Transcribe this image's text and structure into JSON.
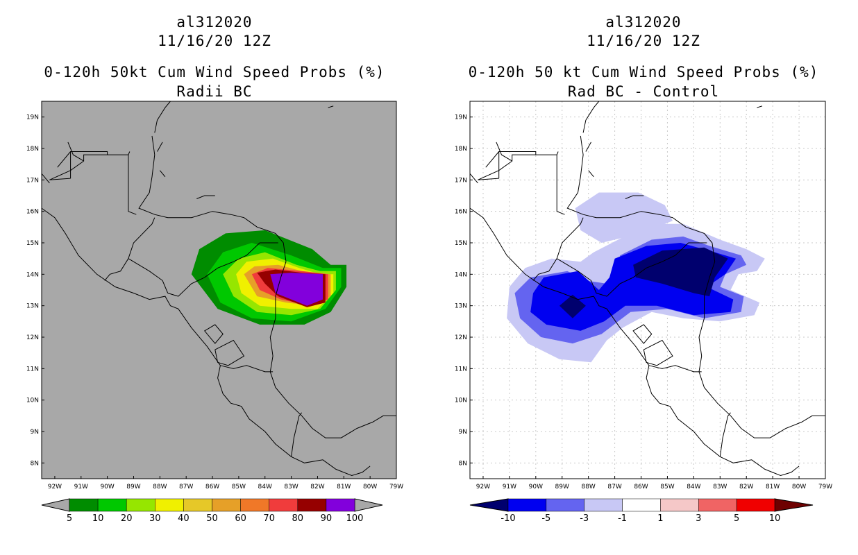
{
  "chart_data": [
    {
      "type": "heatmap",
      "storm_id": "al312020",
      "datetime": "11/16/20 12Z",
      "title": "0-120h 50kt Cum Wind Speed Probs (%)",
      "subtitle": "Radii BC",
      "background_color": "#a8a8a8",
      "lon_range": [
        -92.5,
        -79
      ],
      "lat_range": [
        7.5,
        19.5
      ],
      "x_ticks": [
        "92W",
        "91W",
        "90W",
        "89W",
        "88W",
        "87W",
        "86W",
        "85W",
        "84W",
        "83W",
        "82W",
        "81W",
        "80W",
        "79W"
      ],
      "y_ticks": [
        "8N",
        "9N",
        "10N",
        "11N",
        "12N",
        "13N",
        "14N",
        "15N",
        "16N",
        "17N",
        "18N",
        "19N"
      ],
      "colorbar": {
        "labels": [
          "5",
          "10",
          "20",
          "30",
          "40",
          "50",
          "60",
          "70",
          "80",
          "90",
          "100"
        ],
        "colors": [
          "#008c00",
          "#00c800",
          "#96e600",
          "#f0f000",
          "#e6c828",
          "#e6a028",
          "#f07828",
          "#f03c3c",
          "#960000",
          "#8200dc"
        ],
        "under_color": "#a8a8a8",
        "over_color": "#a8a8a8"
      },
      "field": {
        "center_lon": -83.3,
        "center_lat": 13.9,
        "levels": [
          {
            "value": 5,
            "color": "#008c00",
            "shape": [
              [
                -86.8,
                14.0
              ],
              [
                -86.5,
                14.8
              ],
              [
                -85.5,
                15.3
              ],
              [
                -84.0,
                15.4
              ],
              [
                -82.2,
                14.8
              ],
              [
                -81.5,
                14.3
              ],
              [
                -80.9,
                14.3
              ],
              [
                -80.9,
                13.6
              ],
              [
                -81.5,
                12.8
              ],
              [
                -82.5,
                12.4
              ],
              [
                -84.2,
                12.4
              ],
              [
                -85.8,
                12.9
              ]
            ]
          },
          {
            "value": 10,
            "color": "#00c800",
            "shape": [
              [
                -86.2,
                14.0
              ],
              [
                -85.6,
                14.7
              ],
              [
                -84.5,
                15.0
              ],
              [
                -83.0,
                14.6
              ],
              [
                -81.8,
                14.2
              ],
              [
                -81.1,
                14.2
              ],
              [
                -81.1,
                13.6
              ],
              [
                -81.7,
                12.9
              ],
              [
                -83.0,
                12.5
              ],
              [
                -84.5,
                12.6
              ],
              [
                -85.7,
                13.1
              ]
            ]
          },
          {
            "value": 20,
            "color": "#96e600",
            "shape": [
              [
                -85.6,
                14.0
              ],
              [
                -85.0,
                14.5
              ],
              [
                -84.0,
                14.7
              ],
              [
                -82.8,
                14.3
              ],
              [
                -81.9,
                14.1
              ],
              [
                -81.3,
                14.1
              ],
              [
                -81.3,
                13.5
              ],
              [
                -81.9,
                12.9
              ],
              [
                -83.0,
                12.7
              ],
              [
                -84.3,
                12.8
              ],
              [
                -85.2,
                13.3
              ]
            ]
          },
          {
            "value": 30,
            "color": "#f0f000",
            "shape": [
              [
                -85.1,
                14.0
              ],
              [
                -84.7,
                14.4
              ],
              [
                -83.7,
                14.5
              ],
              [
                -82.7,
                14.2
              ],
              [
                -81.9,
                14.0
              ],
              [
                -81.4,
                14.0
              ],
              [
                -81.4,
                13.4
              ],
              [
                -82.0,
                12.9
              ],
              [
                -83.0,
                12.9
              ],
              [
                -84.2,
                13.0
              ],
              [
                -84.9,
                13.4
              ]
            ]
          },
          {
            "value": 50,
            "color": "#e6a028",
            "shape": [
              [
                -84.8,
                14.0
              ],
              [
                -84.4,
                14.25
              ],
              [
                -83.5,
                14.3
              ],
              [
                -82.6,
                14.1
              ],
              [
                -81.5,
                14.0
              ],
              [
                -81.5,
                13.3
              ],
              [
                -82.2,
                13.0
              ],
              [
                -83.2,
                13.1
              ],
              [
                -84.3,
                13.3
              ]
            ]
          },
          {
            "value": 70,
            "color": "#f03c3c",
            "shape": [
              [
                -84.5,
                14.0
              ],
              [
                -83.9,
                14.2
              ],
              [
                -82.6,
                14.1
              ],
              [
                -81.6,
                14.0
              ],
              [
                -81.6,
                13.2
              ],
              [
                -82.3,
                13.0
              ],
              [
                -83.4,
                13.2
              ],
              [
                -84.2,
                13.5
              ]
            ]
          },
          {
            "value": 80,
            "color": "#960000",
            "shape": [
              [
                -84.3,
                14.05
              ],
              [
                -83.6,
                14.15
              ],
              [
                -82.6,
                14.05
              ],
              [
                -81.7,
                14.0
              ],
              [
                -81.7,
                13.1
              ],
              [
                -82.4,
                12.95
              ],
              [
                -83.5,
                13.3
              ],
              [
                -84.0,
                13.7
              ]
            ]
          },
          {
            "value": 90,
            "color": "#8200dc",
            "shape": [
              [
                -83.8,
                14.0
              ],
              [
                -83.0,
                14.05
              ],
              [
                -81.8,
                14.0
              ],
              [
                -81.8,
                13.2
              ],
              [
                -82.4,
                13.0
              ],
              [
                -83.6,
                13.4
              ]
            ]
          }
        ]
      }
    },
    {
      "type": "heatmap",
      "storm_id": "al312020",
      "datetime": "11/16/20 12Z",
      "title": "0-120h 50 kt Cum Wind Speed Probs (%)",
      "subtitle": "Rad BC - Control",
      "background_color": "#ffffff",
      "grid": true,
      "lon_range": [
        -92.5,
        -79
      ],
      "lat_range": [
        7.5,
        19.5
      ],
      "x_ticks": [
        "92W",
        "91W",
        "90W",
        "89W",
        "88W",
        "87W",
        "86W",
        "85W",
        "84W",
        "83W",
        "82W",
        "81W",
        "80W",
        "79W"
      ],
      "y_ticks": [
        "8N",
        "9N",
        "10N",
        "11N",
        "12N",
        "13N",
        "14N",
        "15N",
        "16N",
        "17N",
        "18N",
        "19N"
      ],
      "colorbar": {
        "labels": [
          "-10",
          "-5",
          "-3",
          "-1",
          "1",
          "3",
          "5",
          "10"
        ],
        "colors": [
          "#0000f0",
          "#6464f0",
          "#c8c8f5",
          "#ffffff",
          "#f5c8c8",
          "#f06464",
          "#f00000"
        ],
        "under_color": "#00006e",
        "over_color": "#6e0000"
      },
      "field": {
        "levels": [
          {
            "value": -1,
            "color": "#c8c8f5",
            "shape": [
              [
                -91.0,
                13.6
              ],
              [
                -90.4,
                14.2
              ],
              [
                -89.4,
                14.5
              ],
              [
                -88.3,
                14.4
              ],
              [
                -87.8,
                14.7
              ],
              [
                -86.4,
                15.3
              ],
              [
                -85.6,
                15.6
              ],
              [
                -84.4,
                15.6
              ],
              [
                -83.0,
                15.1
              ],
              [
                -82.0,
                14.8
              ],
              [
                -81.3,
                14.5
              ],
              [
                -81.6,
                14.1
              ],
              [
                -82.3,
                14.0
              ],
              [
                -82.6,
                13.5
              ],
              [
                -81.5,
                13.1
              ],
              [
                -81.7,
                12.7
              ],
              [
                -83.0,
                12.5
              ],
              [
                -84.4,
                12.6
              ],
              [
                -85.6,
                12.8
              ],
              [
                -86.7,
                12.3
              ],
              [
                -87.3,
                11.9
              ],
              [
                -87.9,
                11.2
              ],
              [
                -89.1,
                11.3
              ],
              [
                -90.3,
                11.8
              ],
              [
                -91.1,
                12.6
              ]
            ]
          },
          {
            "value": -1,
            "color": "#c8c8f5",
            "shape": [
              [
                -88.5,
                16.1
              ],
              [
                -87.6,
                16.6
              ],
              [
                -86.1,
                16.6
              ],
              [
                -85.1,
                16.2
              ],
              [
                -84.8,
                15.7
              ],
              [
                -86.0,
                15.3
              ],
              [
                -87.5,
                15.0
              ],
              [
                -88.3,
                15.4
              ]
            ]
          },
          {
            "value": -3,
            "color": "#6464f0",
            "shape": [
              [
                -90.8,
                13.4
              ],
              [
                -90.2,
                13.9
              ],
              [
                -88.8,
                14.1
              ],
              [
                -88.1,
                13.8
              ],
              [
                -87.3,
                13.7
              ],
              [
                -86.9,
                13.9
              ],
              [
                -86.8,
                14.6
              ],
              [
                -85.6,
                15.1
              ],
              [
                -84.4,
                15.2
              ],
              [
                -83.4,
                14.9
              ],
              [
                -82.2,
                14.6
              ],
              [
                -82.0,
                14.3
              ],
              [
                -82.8,
                14.0
              ],
              [
                -83.0,
                13.6
              ],
              [
                -82.1,
                13.3
              ],
              [
                -82.2,
                12.8
              ],
              [
                -83.6,
                12.6
              ],
              [
                -85.0,
                12.9
              ],
              [
                -86.4,
                12.8
              ],
              [
                -87.5,
                12.1
              ],
              [
                -88.6,
                11.8
              ],
              [
                -89.8,
                12.0
              ],
              [
                -90.6,
                12.6
              ]
            ]
          },
          {
            "value": -5,
            "color": "#0000f0",
            "shape": [
              [
                -90.1,
                13.4
              ],
              [
                -89.7,
                13.9
              ],
              [
                -88.4,
                14.1
              ],
              [
                -87.6,
                13.5
              ],
              [
                -87.2,
                13.9
              ],
              [
                -87.0,
                14.5
              ],
              [
                -85.8,
                14.9
              ],
              [
                -84.5,
                15.0
              ],
              [
                -83.2,
                14.7
              ],
              [
                -82.4,
                14.5
              ],
              [
                -82.8,
                14.0
              ],
              [
                -83.5,
                13.6
              ],
              [
                -82.5,
                13.2
              ],
              [
                -82.6,
                12.8
              ],
              [
                -84.0,
                12.7
              ],
              [
                -85.4,
                13.0
              ],
              [
                -86.6,
                13.0
              ],
              [
                -87.4,
                12.5
              ],
              [
                -88.3,
                12.2
              ],
              [
                -89.6,
                12.4
              ],
              [
                -90.2,
                12.8
              ]
            ]
          },
          {
            "value": -10,
            "color": "#00006e",
            "shape": [
              [
                -89.1,
                13.0
              ],
              [
                -88.6,
                13.35
              ],
              [
                -88.1,
                13.0
              ],
              [
                -88.6,
                12.6
              ]
            ]
          },
          {
            "value": -10,
            "color": "#00006e",
            "shape": [
              [
                -86.3,
                14.3
              ],
              [
                -85.2,
                14.75
              ],
              [
                -83.6,
                14.85
              ],
              [
                -82.7,
                14.5
              ],
              [
                -83.2,
                13.9
              ],
              [
                -83.4,
                13.3
              ],
              [
                -84.0,
                13.4
              ],
              [
                -85.2,
                13.7
              ],
              [
                -86.2,
                13.9
              ]
            ]
          }
        ]
      }
    }
  ]
}
